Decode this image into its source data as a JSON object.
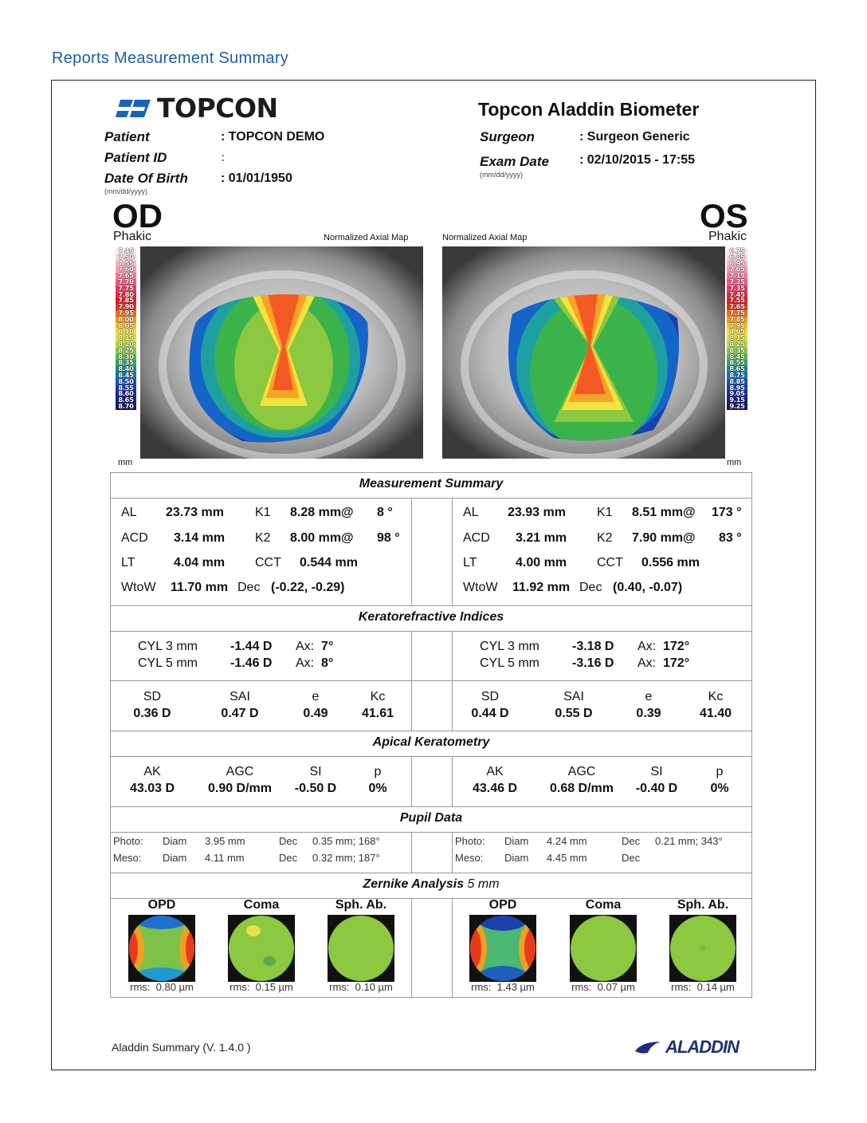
{
  "page_title": "Reports Measurement Summary",
  "logo": {
    "brand": "TOPCON",
    "icon": "topcon-logo-icon"
  },
  "device_title": "Topcon Aladdin Biometer",
  "patient": {
    "patient_label": "Patient",
    "patient_value": ": TOPCON DEMO",
    "id_label": "Patient ID",
    "id_value": ":",
    "dob_label": "Date Of Birth",
    "dob_value": ": 01/01/1950",
    "dob_format": "(mm/dd/yyyy)"
  },
  "exam": {
    "surgeon_label": "Surgeon",
    "surgeon_value": ": Surgeon Generic",
    "date_label": "Exam Date",
    "date_value": ": 02/10/2015 - 17:55",
    "date_format": "(mm/dd/yyyy)"
  },
  "od": {
    "eye": "OD",
    "lens": "Phakic",
    "map_title": "Normalized Axial Map",
    "scale": [
      "7.45",
      "7.50",
      "7.55",
      "7.60",
      "7.65",
      "7.70",
      "7.75",
      "7.80",
      "7.85",
      "7.90",
      "7.95",
      "8.00",
      "8.05",
      "8.10",
      "8.15",
      "8.20",
      "8.25",
      "8.30",
      "8.35",
      "8.40",
      "8.45",
      "8.50",
      "8.55",
      "8.60",
      "8.65",
      "8.70"
    ],
    "scale_unit": "mm",
    "AL": "23.73 mm",
    "K1": "8.28 mm@",
    "K1_ax": "8 °",
    "ACD": "3.14 mm",
    "K2": "8.00 mm@",
    "K2_ax": "98 °",
    "LT": "4.04 mm",
    "CCT": "0.544 mm",
    "WtoW": "11.70 mm",
    "Dec": "(-0.22, -0.29)",
    "cyl3": "-1.44 D",
    "ax3": "7°",
    "cyl5": "-1.46 D",
    "ax5": "8°",
    "SD": "0.36 D",
    "SAI": "0.47 D",
    "e": "0.49",
    "Kc": "41.61",
    "AK": "43.03 D",
    "AGC": "0.90 D/mm",
    "SI": "-0.50 D",
    "p": "0%",
    "photo_diam": "3.95 mm",
    "photo_dec": "0.35 mm; 168°",
    "meso_diam": "4.11 mm",
    "meso_dec": "0.32 mm; 187°",
    "opd_rms": "0.80 µm",
    "coma_rms": "0.15 µm",
    "sph_rms": "0.10 µm"
  },
  "os": {
    "eye": "OS",
    "lens": "Phakic",
    "map_title": "Normalized Axial Map",
    "scale": [
      "6.75",
      "6.85",
      "6.95",
      "7.05",
      "7.15",
      "7.25",
      "7.35",
      "7.45",
      "7.55",
      "7.65",
      "7.75",
      "7.85",
      "7.95",
      "8.05",
      "8.15",
      "8.25",
      "8.35",
      "8.45",
      "8.55",
      "8.65",
      "8.75",
      "8.85",
      "8.95",
      "9.05",
      "9.15",
      "9.25"
    ],
    "scale_unit": "mm",
    "AL": "23.93 mm",
    "K1": "8.51 mm@",
    "K1_ax": "173 °",
    "ACD": "3.21 mm",
    "K2": "7.90 mm@",
    "K2_ax": "83 °",
    "LT": "4.00 mm",
    "CCT": "0.556 mm",
    "WtoW": "11.92 mm",
    "Dec": "(0.40, -0.07)",
    "cyl3": "-3.18 D",
    "ax3": "172°",
    "cyl5": "-3.16 D",
    "ax5": "172°",
    "SD": "0.44 D",
    "SAI": "0.55 D",
    "e": "0.39",
    "Kc": "41.40",
    "AK": "43.46 D",
    "AGC": "0.68 D/mm",
    "SI": "-0.40 D",
    "p": "0%",
    "photo_diam": "4.24 mm",
    "photo_dec": "0.21 mm; 343°",
    "meso_diam": "4.45 mm",
    "meso_dec": "",
    "opd_rms": "1.43 µm",
    "coma_rms": "0.07 µm",
    "sph_rms": "0.14 µm"
  },
  "labels": {
    "measurement_summary": "Measurement Summary",
    "kerato": "Keratorefractive Indices",
    "apical": "Apical Keratometry",
    "pupil": "Pupil Data",
    "zernike": "Zernike Analysis",
    "zernike_size": "5 mm",
    "AL": "AL",
    "ACD": "ACD",
    "LT": "LT",
    "WtoW": "WtoW",
    "K1": "K1",
    "K2": "K2",
    "CCT": "CCT",
    "Dec": "Dec",
    "cyl3": "CYL 3 mm",
    "cyl5": "CYL 5 mm",
    "ax": "Ax:",
    "SD": "SD",
    "SAI": "SAI",
    "e": "e",
    "Kc": "Kc",
    "AK": "AK",
    "AGC": "AGC",
    "SI": "SI",
    "p": "p",
    "photo": "Photo:",
    "meso": "Meso:",
    "diam": "Diam",
    "dec": "Dec",
    "opd": "OPD",
    "coma": "Coma",
    "sph": "Sph. Ab.",
    "rms": "rms:"
  },
  "footer": "Aladdin Summary (V. 1.4.0 )",
  "footer_logo": "ALADDIN",
  "colors": {
    "title_blue": "#1a5fa8",
    "logo_blue": "#1565c0",
    "aladdin_navy": "#1e2f7a"
  }
}
